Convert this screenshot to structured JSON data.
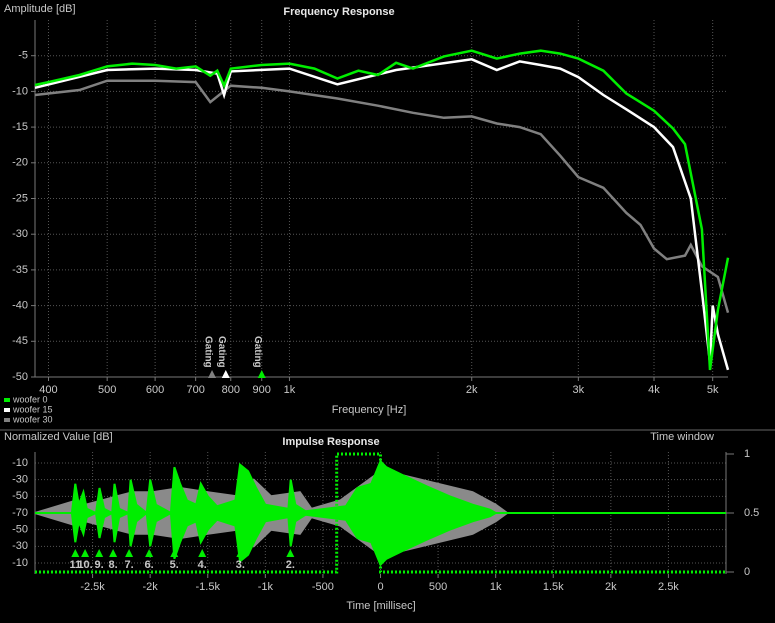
{
  "chart_data": [
    {
      "type": "line",
      "title": "Frequency Response",
      "ylabel": "Amplitude [dB]",
      "xlabel": "Frequency [Hz]",
      "xscale": "log",
      "xlim": [
        380,
        5300
      ],
      "ylim": [
        -50,
        0
      ],
      "xticks": [
        400,
        500,
        600,
        700,
        800,
        900,
        {
          "value": 1000,
          "label": "1k"
        },
        {
          "value": 2000,
          "label": "2k"
        },
        {
          "value": 3000,
          "label": "3k"
        },
        {
          "value": 4000,
          "label": "4k"
        },
        {
          "value": 5000,
          "label": "5k"
        }
      ],
      "yticks": [
        -5,
        -10,
        -15,
        -20,
        -25,
        -30,
        -35,
        -40,
        -45,
        -50
      ],
      "grid": true,
      "legend": "bottom-left",
      "series": [
        {
          "name": "woofer 0",
          "color": "#00ee00",
          "x": [
            380,
            400,
            450,
            500,
            550,
            600,
            650,
            700,
            740,
            760,
            780,
            800,
            900,
            1000,
            1100,
            1200,
            1300,
            1400,
            1500,
            1600,
            1800,
            2000,
            2200,
            2400,
            2600,
            2800,
            3000,
            3300,
            3600,
            4000,
            4300,
            4500,
            4800,
            4950,
            5100,
            5300
          ],
          "values": [
            -9.1,
            -8.7,
            -7.7,
            -6.5,
            -6.1,
            -6.3,
            -6.8,
            -6.5,
            -7.8,
            -7.1,
            -9.2,
            -6.8,
            -6.3,
            -6.1,
            -6.8,
            -8.2,
            -7.1,
            -7.7,
            -6.0,
            -6.8,
            -5.1,
            -4.3,
            -5.4,
            -4.7,
            -4.3,
            -4.7,
            -5.4,
            -7.1,
            -10.3,
            -12.7,
            -15.2,
            -17.4,
            -29.3,
            -49,
            -40.6,
            -33.3
          ]
        },
        {
          "name": "woofer 15",
          "color": "#ffffff",
          "x": [
            380,
            500,
            600,
            700,
            760,
            780,
            800,
            1000,
            1200,
            1500,
            2000,
            2200,
            2400,
            2600,
            2800,
            3000,
            3300,
            3600,
            4000,
            4300,
            4600,
            4800,
            4950,
            5000,
            5100,
            5300
          ],
          "values": [
            -9.5,
            -7,
            -6.8,
            -7,
            -7.5,
            -10.5,
            -7.2,
            -6.8,
            -9,
            -7,
            -5.5,
            -7,
            -5.8,
            -6.3,
            -6.8,
            -8,
            -10.5,
            -12.5,
            -15,
            -17.8,
            -25,
            -38,
            -48,
            -40,
            -44,
            -49
          ]
        },
        {
          "name": "woofer 30",
          "color": "#808080",
          "x": [
            380,
            450,
            500,
            600,
            700,
            740,
            800,
            900,
            1000,
            1200,
            1400,
            1600,
            1800,
            2000,
            2200,
            2400,
            2600,
            2800,
            3000,
            3300,
            3600,
            3800,
            4000,
            4200,
            4500,
            4600,
            4800,
            5100,
            5300
          ],
          "values": [
            -10.5,
            -9.8,
            -8.5,
            -8.5,
            -8.7,
            -11.5,
            -9.2,
            -9.5,
            -10,
            -11,
            -12,
            -13,
            -13.7,
            -13.5,
            -14.5,
            -15,
            -16,
            -19,
            -22,
            -23.5,
            -27,
            -28.7,
            -32,
            -33.5,
            -33,
            -31.5,
            -34.5,
            -36,
            -41
          ]
        }
      ],
      "annotations": [
        {
          "text": "Gating",
          "x": 745,
          "color": "#808080"
        },
        {
          "text": "Gating",
          "x": 785,
          "color": "#ffffff"
        },
        {
          "text": "Gating",
          "x": 900,
          "color": "#00ee00"
        }
      ]
    },
    {
      "type": "impulse",
      "title": "Impulse Response",
      "ylabel": "Normalized Value [dB]",
      "xlabel": "Time [millisec]",
      "y2label": "Time window",
      "xlim": [
        -3000,
        3000
      ],
      "ylim": [
        -70,
        -10
      ],
      "mirrored": true,
      "y2lim": [
        0,
        1
      ],
      "xticks": [
        {
          "value": -2500,
          "label": "-2.5k"
        },
        {
          "value": -2000,
          "label": "-2k"
        },
        {
          "value": -1500,
          "label": "-1.5k"
        },
        {
          "value": -1000,
          "label": "-1k"
        },
        -500,
        0,
        500,
        {
          "value": 1000,
          "label": "1k"
        },
        {
          "value": 1500,
          "label": "1.5k"
        },
        {
          "value": 2000,
          "label": "2k"
        },
        {
          "value": 2500,
          "label": "2.5k"
        }
      ],
      "yticks": [
        -10,
        -30,
        -50,
        -70,
        -50,
        -30,
        -10
      ],
      "y2ticks": [
        0,
        0.5,
        1
      ],
      "grid": true,
      "series": [
        {
          "color": "#8a8a8a",
          "x": [
            -3000,
            -2640,
            -2560,
            -2420,
            -2290,
            -2150,
            -1980,
            -1740,
            -1500,
            -1250,
            -1100,
            -950,
            -700,
            -600,
            -350,
            0,
            200,
            500,
            800,
            1000,
            1100,
            3000
          ],
          "values": [
            -70,
            -55,
            -60,
            -55,
            -50,
            -45,
            -45,
            -40,
            -45,
            -50,
            -30,
            -50,
            -45,
            -65,
            -55,
            -20,
            -25,
            -35,
            -45,
            -60,
            -70,
            -70
          ]
        },
        {
          "color": "#00ee00",
          "x": [
            -3000,
            -2680,
            -2650,
            -2620,
            -2580,
            -2550,
            -2470,
            -2440,
            -2400,
            -2330,
            -2310,
            -2270,
            -2190,
            -2170,
            -2120,
            -2030,
            -2000,
            -1950,
            -1820,
            -1790,
            -1740,
            -1680,
            -1600,
            -1560,
            -1500,
            -1420,
            -1260,
            -1220,
            -1150,
            -1080,
            -1000,
            -800,
            -780,
            -740,
            -650,
            -300,
            -200,
            -80,
            0,
            50,
            200,
            400,
            600,
            800,
            950,
            1000,
            3000
          ],
          "values": [
            -70,
            -70,
            -35,
            -60,
            -45,
            -65,
            -70,
            -40,
            -65,
            -70,
            -35,
            -65,
            -70,
            -30,
            -60,
            -70,
            -30,
            -60,
            -70,
            -15,
            -35,
            -55,
            -60,
            -35,
            -50,
            -62,
            -55,
            -12,
            -20,
            -40,
            -60,
            -65,
            -30,
            -60,
            -68,
            -62,
            -40,
            -35,
            -8,
            -15,
            -25,
            -38,
            -50,
            -60,
            -66,
            -70,
            -70
          ]
        },
        {
          "color": "#00ee00",
          "axis": "y2",
          "style": "dotted",
          "x": [
            -3000,
            -380,
            -380,
            0,
            0,
            3000
          ],
          "values": [
            0,
            0,
            1,
            1,
            0,
            0
          ]
        }
      ],
      "markers": {
        "color": "#00ee00",
        "x": [
          -2650,
          -2565,
          -2443,
          -2322,
          -2183,
          -2009,
          -1791,
          -1548,
          -1217,
          -783
        ],
        "labels": [
          "11",
          "10.",
          "9.",
          "8.",
          "7.",
          "6.",
          "5.",
          "4.",
          "3.",
          "2."
        ]
      }
    }
  ]
}
